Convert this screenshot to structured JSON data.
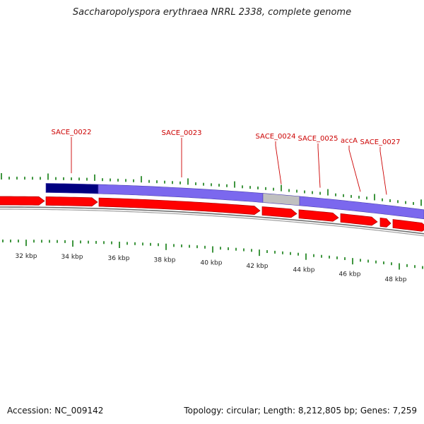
{
  "title": "Saccharopolyspora erythraea NRRL 2338, complete genome",
  "footer": {
    "accession": "Accession: NC_009142",
    "stats": "Topology: circular; Length: 8,212,805 bp; Genes: 7,259"
  },
  "colors": {
    "gene_label": "#cc0000",
    "cds_arrow": "#ff0000",
    "cds_edge": "#aa0000",
    "selected_feature": "#000080",
    "feature_purple": "#7b68ee",
    "feature_gray": "#c0c0c0",
    "tick": "#2a8a2a",
    "backbone": "#707070"
  },
  "genes": [
    {
      "name": "SACE_0022"
    },
    {
      "name": "SACE_0023"
    },
    {
      "name": "SACE_0024"
    },
    {
      "name": "SACE_0025"
    },
    {
      "name": "accA"
    },
    {
      "name": "SACE_0027"
    }
  ],
  "scale_labels": [
    "32 kbp",
    "34 kbp",
    "36 kbp",
    "38 kbp",
    "40 kbp",
    "42 kbp",
    "44 kbp",
    "46 kbp",
    "48 kbp"
  ]
}
